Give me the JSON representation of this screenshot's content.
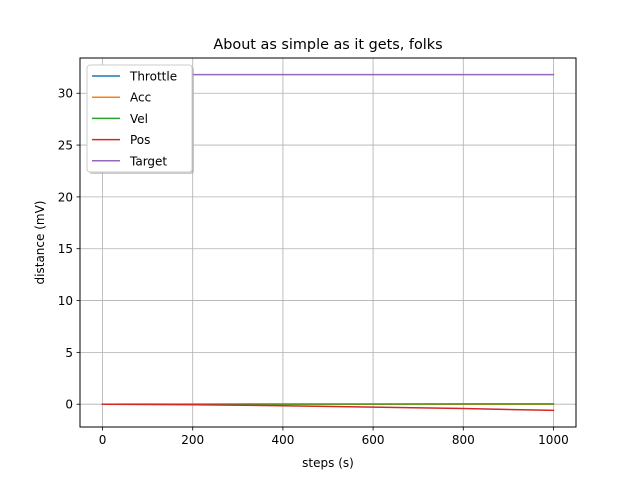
{
  "chart_data": {
    "type": "line",
    "title": "About as simple as it gets, folks",
    "xlabel": "steps (s)",
    "ylabel": "distance (mV)",
    "xlim": [
      -50,
      1050
    ],
    "ylim": [
      -2.2,
      33.4
    ],
    "xticks": [
      0,
      200,
      400,
      600,
      800,
      1000
    ],
    "yticks": [
      0,
      5,
      10,
      15,
      20,
      25,
      30
    ],
    "grid": true,
    "legend_position": "top-left",
    "series": [
      {
        "name": "Throttle",
        "color": "#1f77b4",
        "x": [
          0,
          1000
        ],
        "y": [
          0,
          0
        ]
      },
      {
        "name": "Acc",
        "color": "#ff7f0e",
        "x": [
          0,
          1000
        ],
        "y": [
          0,
          0
        ]
      },
      {
        "name": "Vel",
        "color": "#2ca02c",
        "x": [
          0,
          200,
          400,
          600,
          800,
          1000
        ],
        "y": [
          0,
          0.01,
          0.02,
          0.02,
          0.03,
          0.03
        ]
      },
      {
        "name": "Pos",
        "color": "#d62728",
        "x": [
          0,
          200,
          400,
          600,
          800,
          1000
        ],
        "y": [
          0,
          -0.05,
          -0.15,
          -0.28,
          -0.42,
          -0.6
        ]
      },
      {
        "name": "Target",
        "color": "#9467bd",
        "x": [
          200,
          1000
        ],
        "y": [
          31.8,
          31.8
        ]
      }
    ]
  }
}
